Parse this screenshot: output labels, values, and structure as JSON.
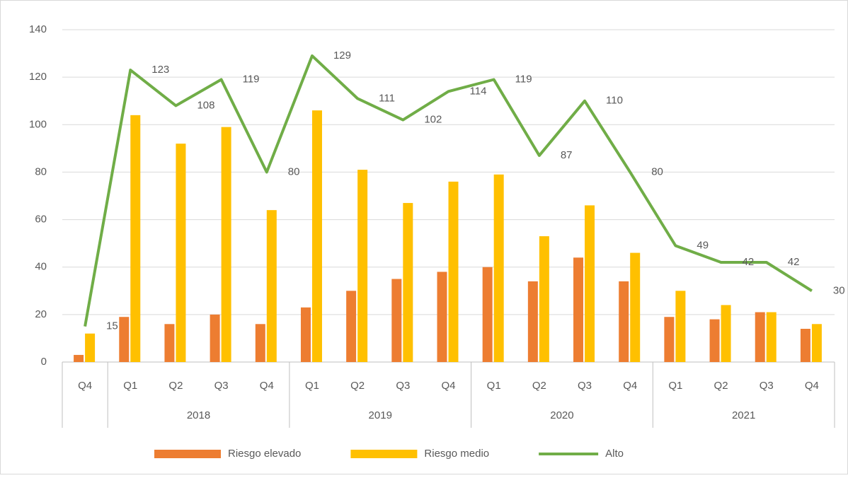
{
  "chart_data": {
    "type": "bar-line",
    "category_groups": [
      {
        "name": null,
        "categories": [
          "Q4"
        ]
      },
      {
        "name": "2018",
        "categories": [
          "Q1",
          "Q2",
          "Q3",
          "Q4"
        ]
      },
      {
        "name": "2019",
        "categories": [
          "Q1",
          "Q2",
          "Q3",
          "Q4"
        ]
      },
      {
        "name": "2020",
        "categories": [
          "Q1",
          "Q2",
          "Q3",
          "Q4"
        ]
      },
      {
        "name": "2021",
        "categories": [
          "Q1",
          "Q2",
          "Q3",
          "Q4"
        ]
      }
    ],
    "series": [
      {
        "name": "Riesgo elevado",
        "type": "bar",
        "color": "#ed7d31",
        "values": [
          3,
          19,
          16,
          20,
          16,
          23,
          30,
          35,
          38,
          40,
          34,
          44,
          34,
          19,
          18,
          21,
          14
        ]
      },
      {
        "name": "Riesgo medio",
        "type": "bar",
        "color": "#ffc000",
        "values": [
          12,
          104,
          92,
          99,
          64,
          106,
          81,
          67,
          76,
          79,
          53,
          66,
          46,
          30,
          24,
          21,
          16
        ]
      },
      {
        "name": "Alto",
        "type": "line",
        "color": "#70ad47",
        "data_labels": true,
        "values": [
          15,
          123,
          108,
          119,
          80,
          129,
          111,
          102,
          114,
          119,
          87,
          110,
          80,
          49,
          42,
          42,
          30
        ]
      }
    ],
    "ylim": [
      0,
      140
    ],
    "yticks": [
      0,
      20,
      40,
      60,
      80,
      100,
      120,
      140
    ],
    "grid": true,
    "legend": "bottom"
  }
}
